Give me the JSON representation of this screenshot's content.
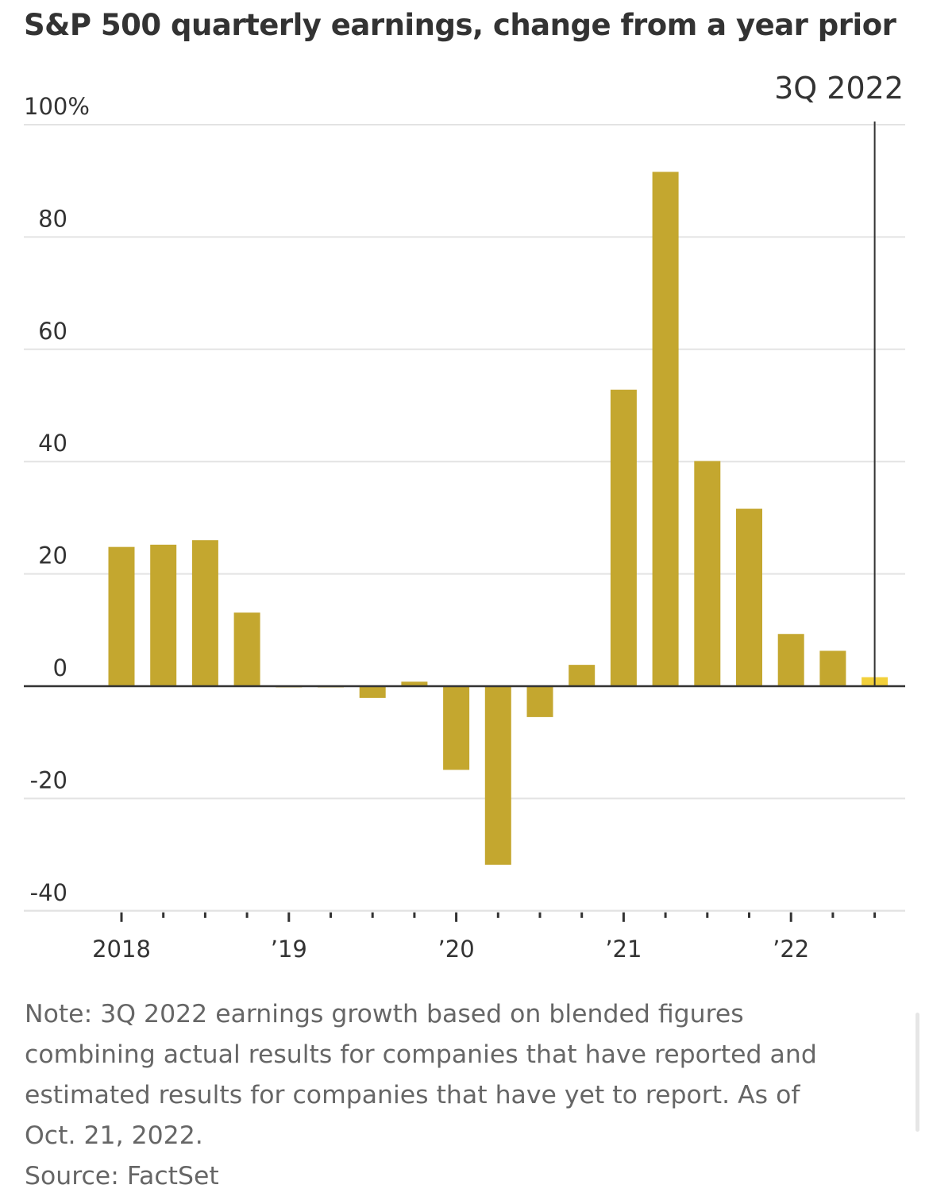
{
  "title": "S&P 500 quarterly earnings, change from a year prior",
  "annotation": "3Q 2022",
  "note_lines": [
    "Note: 3Q 2022 earnings growth based on blended figures",
    "combining actual results for companies that have reported and",
    "estimated results for companies that have yet to report. As of",
    "Oct. 21, 2022."
  ],
  "source": "Source: FactSet",
  "colors": {
    "bar": "#c4a72f",
    "highlight": "#f2d03b",
    "grid": "#e3e3e3",
    "text": "#333333",
    "note": "#666666"
  },
  "chart_data": {
    "type": "bar",
    "title": "S&P 500 quarterly earnings, change from a year prior",
    "categories": [
      "1Q 2018",
      "2Q 2018",
      "3Q 2018",
      "4Q 2018",
      "1Q 2019",
      "2Q 2019",
      "3Q 2019",
      "4Q 2019",
      "1Q 2020",
      "2Q 2020",
      "3Q 2020",
      "4Q 2020",
      "1Q 2021",
      "2Q 2021",
      "3Q 2021",
      "4Q 2021",
      "1Q 2022",
      "2Q 2022",
      "3Q 2022"
    ],
    "values": [
      24.8,
      25.2,
      26.0,
      13.1,
      -0.2,
      0.0,
      -2.1,
      0.8,
      -14.9,
      -31.8,
      -5.5,
      3.8,
      52.8,
      91.6,
      40.1,
      31.6,
      9.3,
      6.3,
      1.6
    ],
    "highlight_index": 18,
    "ylim": [
      -40,
      100
    ],
    "yticks": [
      100,
      80,
      60,
      40,
      20,
      0,
      -20,
      -40
    ],
    "ytick_labels": [
      "100%",
      "80",
      "60",
      "40",
      "20",
      "0",
      "-20",
      "-40"
    ],
    "xtick_labels": [
      {
        "index": 0,
        "label": "2018"
      },
      {
        "index": 4,
        "label": "’19"
      },
      {
        "index": 8,
        "label": "’20"
      },
      {
        "index": 12,
        "label": "’21"
      },
      {
        "index": 16,
        "label": "’22"
      }
    ],
    "grid": true,
    "xlabel": "",
    "ylabel": ""
  }
}
